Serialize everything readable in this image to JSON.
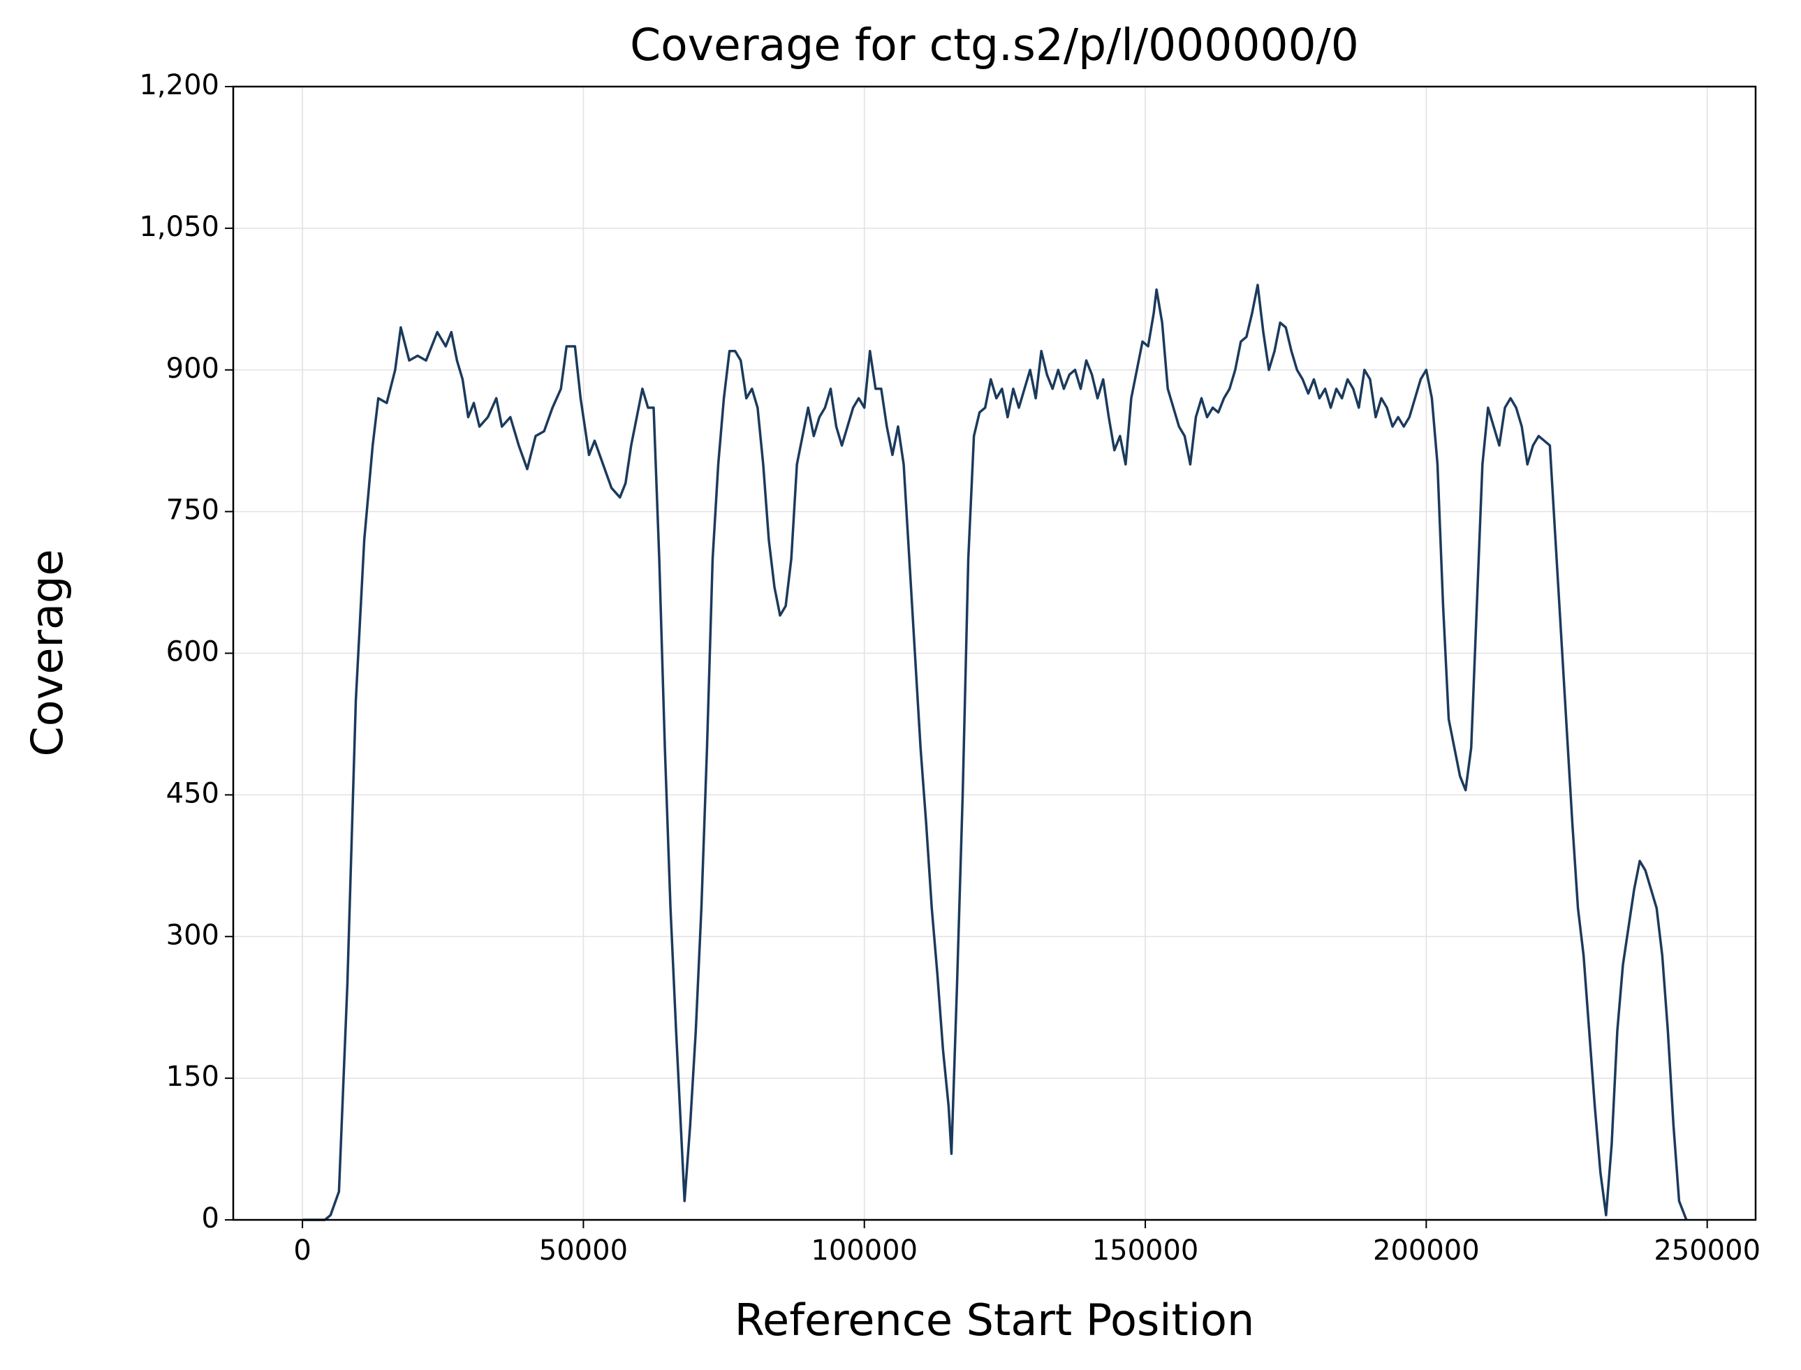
{
  "chart_data": {
    "type": "line",
    "title": "Coverage for ctg.s2/p/l/000000/0",
    "x_label": "Reference Start Position",
    "y_label": "Coverage",
    "xlim": [
      -12315,
      258615
    ],
    "xticks": [
      0,
      50000,
      100000,
      150000,
      200000,
      250000
    ],
    "ylim": [
      0,
      1200
    ],
    "yticks": [
      0,
      150,
      300,
      450,
      600,
      750,
      900,
      {
        "value": 1050,
        "label": "1,050"
      },
      {
        "value": 1200,
        "label": "1,200"
      }
    ],
    "grid": true,
    "x": [
      0,
      4000,
      5000,
      6500,
      8000,
      9500,
      11000,
      12500,
      13500,
      15000,
      16500,
      17500,
      19000,
      20500,
      22000,
      24000,
      25500,
      26500,
      27500,
      28500,
      29500,
      30500,
      31500,
      33000,
      34500,
      35500,
      37000,
      38500,
      40000,
      41500,
      43000,
      44500,
      46000,
      47000,
      48500,
      49500,
      51000,
      52000,
      53500,
      55000,
      56500,
      57500,
      58500,
      59500,
      60500,
      61500,
      62500,
      63500,
      64500,
      65500,
      66500,
      67500,
      68000,
      69000,
      70000,
      71000,
      72000,
      73000,
      74000,
      75000,
      76000,
      77000,
      78000,
      79000,
      80000,
      81000,
      82000,
      83000,
      84000,
      85000,
      86000,
      87000,
      88000,
      89000,
      90000,
      91000,
      92000,
      93000,
      94000,
      95000,
      96000,
      97000,
      98000,
      99000,
      100000,
      101000,
      102000,
      103000,
      104000,
      105000,
      106000,
      107000,
      108000,
      109000,
      110000,
      111000,
      112000,
      113000,
      114000,
      115000,
      115500,
      116500,
      117500,
      118500,
      119500,
      120500,
      121500,
      122500,
      123500,
      124500,
      125500,
      126500,
      127500,
      128500,
      129500,
      130500,
      131500,
      132500,
      133500,
      134500,
      135500,
      136500,
      137500,
      138500,
      139500,
      140500,
      141500,
      142500,
      143500,
      144500,
      145500,
      146500,
      147500,
      148500,
      149500,
      150500,
      151500,
      152000,
      153000,
      154000,
      155000,
      156000,
      157000,
      158000,
      159000,
      160000,
      161000,
      162000,
      163000,
      164000,
      165000,
      166000,
      167000,
      168000,
      169000,
      170000,
      171000,
      172000,
      173000,
      174000,
      175000,
      176000,
      177000,
      178000,
      179000,
      180000,
      181000,
      182000,
      183000,
      184000,
      185000,
      186000,
      187000,
      188000,
      189000,
      190000,
      191000,
      192000,
      193000,
      194000,
      195000,
      196000,
      197000,
      198000,
      199000,
      200000,
      201000,
      202000,
      203000,
      204000,
      205000,
      206000,
      207000,
      208000,
      209000,
      210000,
      211000,
      212000,
      213000,
      214000,
      215000,
      216000,
      217000,
      218000,
      219000,
      220000,
      221000,
      222000,
      223000,
      224000,
      225000,
      226000,
      227000,
      228000,
      229000,
      230000,
      231000,
      232000,
      233000,
      234000,
      235000,
      236000,
      237000,
      238000,
      239000,
      240000,
      241000,
      242000,
      243000,
      244000,
      245000,
      246300
    ],
    "series": [
      {
        "color": "#1b3a5c",
        "values": [
          0,
          0,
          5,
          30,
          250,
          550,
          720,
          820,
          870,
          865,
          900,
          945,
          910,
          915,
          910,
          940,
          925,
          940,
          910,
          890,
          850,
          865,
          840,
          850,
          870,
          840,
          850,
          820,
          795,
          830,
          835,
          860,
          880,
          925,
          925,
          870,
          810,
          825,
          800,
          775,
          765,
          780,
          820,
          850,
          880,
          860,
          860,
          700,
          500,
          330,
          200,
          80,
          20,
          100,
          200,
          330,
          500,
          700,
          800,
          870,
          920,
          920,
          910,
          870,
          880,
          860,
          800,
          720,
          670,
          640,
          650,
          700,
          800,
          830,
          860,
          830,
          850,
          860,
          880,
          840,
          820,
          840,
          860,
          870,
          860,
          920,
          880,
          880,
          840,
          810,
          840,
          800,
          700,
          600,
          500,
          420,
          330,
          260,
          180,
          120,
          70,
          250,
          450,
          700,
          830,
          855,
          860,
          890,
          870,
          880,
          850,
          880,
          860,
          880,
          900,
          870,
          920,
          895,
          880,
          900,
          880,
          895,
          900,
          880,
          910,
          895,
          870,
          890,
          850,
          815,
          830,
          800,
          870,
          900,
          930,
          925,
          960,
          985,
          950,
          880,
          860,
          840,
          830,
          800,
          850,
          870,
          850,
          860,
          855,
          870,
          880,
          900,
          930,
          935,
          960,
          990,
          940,
          900,
          920,
          950,
          945,
          920,
          900,
          890,
          875,
          890,
          870,
          880,
          860,
          880,
          870,
          890,
          880,
          860,
          900,
          890,
          850,
          870,
          860,
          840,
          850,
          840,
          850,
          870,
          890,
          900,
          870,
          800,
          650,
          530,
          500,
          470,
          455,
          500,
          650,
          800,
          860,
          840,
          820,
          860,
          870,
          860,
          840,
          800,
          820,
          830,
          825,
          820,
          720,
          620,
          520,
          420,
          330,
          280,
          200,
          120,
          50,
          5,
          80,
          200,
          270,
          310,
          350,
          380,
          370,
          350,
          330,
          280,
          200,
          100,
          20,
          0
        ]
      }
    ]
  }
}
